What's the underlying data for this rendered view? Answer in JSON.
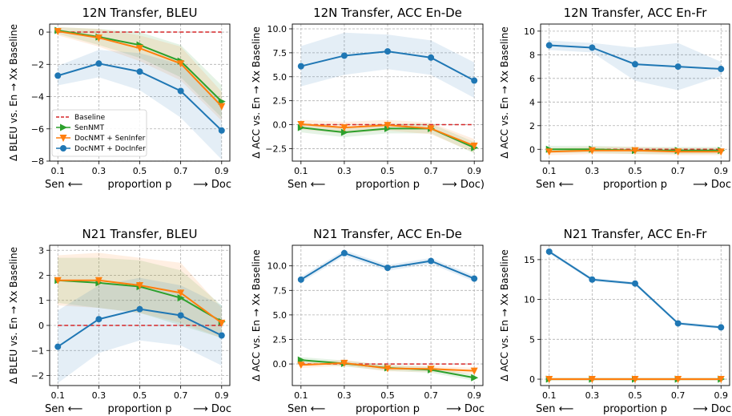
{
  "colors": {
    "baseline": "#d62728",
    "senNMT": "#2ca02c",
    "docSen": "#ff7f0e",
    "docDoc": "#1f77b4"
  },
  "legend": [
    "Baseline",
    "SenNMT",
    "DocNMT + SenInfer",
    "DocNMT + DocInfer"
  ],
  "chart_data": [
    {
      "type": "line",
      "title": "12N Transfer, BLEU",
      "ylabel": "Δ BLEU vs. En → Xx Baseline",
      "xlabel": [
        "Sen ⟵",
        "proportion p",
        "⟶ Doc"
      ],
      "x": [
        0.1,
        0.3,
        0.5,
        0.7,
        0.9
      ],
      "xticks": [
        "0.1",
        "0.3",
        "0.5",
        "0.7",
        "0.9"
      ],
      "ylim": [
        -8,
        0.5
      ],
      "yticks": [
        0,
        -2,
        -4,
        -6,
        -8
      ],
      "ytick_labels": [
        "0",
        "−2",
        "−4",
        "−6",
        "−8"
      ],
      "legend_shown": true,
      "series": [
        {
          "name": "SenNMT",
          "values": [
            0.1,
            -0.3,
            -0.8,
            -1.8,
            -4.3
          ],
          "lo": [
            -0.1,
            -0.8,
            -1.6,
            -2.8,
            -5.3
          ],
          "hi": [
            0.3,
            0.2,
            0.0,
            -0.8,
            -3.3
          ]
        },
        {
          "name": "DocNMT + SenInfer",
          "values": [
            0.05,
            -0.35,
            -1.0,
            -1.95,
            -4.6
          ],
          "lo": [
            -0.2,
            -0.9,
            -1.8,
            -3.0,
            -5.5
          ],
          "hi": [
            0.3,
            0.2,
            -0.2,
            -0.9,
            -3.7
          ]
        },
        {
          "name": "DocNMT + DocInfer",
          "values": [
            -2.7,
            -1.95,
            -2.45,
            -3.65,
            -6.1
          ],
          "lo": [
            -3.3,
            -2.8,
            -3.6,
            -5.3,
            -7.9
          ],
          "hi": [
            -2.1,
            -1.1,
            -1.3,
            -2.0,
            -4.3
          ]
        }
      ]
    },
    {
      "type": "line",
      "title": "12N Transfer, ACC En-De",
      "ylabel": "Δ ACC vs. En → Xx Baseline",
      "xlabel": [
        "Sen ⟵",
        "proportion p",
        "⟶ Doc)"
      ],
      "x": [
        0.1,
        0.3,
        0.5,
        0.7,
        0.9
      ],
      "xticks": [
        "0.1",
        "0.3",
        "0.5",
        "0.7",
        "0.9"
      ],
      "ylim": [
        -3.8,
        10.5
      ],
      "yticks": [
        10,
        7.5,
        5,
        2.5,
        0,
        -2.5
      ],
      "ytick_labels": [
        "10.0",
        "7.5",
        "5.0",
        "2.5",
        "0.0",
        "−2.5"
      ],
      "legend_shown": false,
      "series": [
        {
          "name": "SenNMT",
          "values": [
            -0.3,
            -0.8,
            -0.4,
            -0.4,
            -2.4
          ],
          "lo": [
            -0.8,
            -1.3,
            -0.9,
            -0.9,
            -3.0
          ],
          "hi": [
            0.2,
            -0.3,
            0.1,
            0.1,
            -1.8
          ]
        },
        {
          "name": "DocNMT + SenInfer",
          "values": [
            0.05,
            -0.3,
            -0.05,
            -0.4,
            -2.2
          ],
          "lo": [
            -0.5,
            -0.9,
            -0.6,
            -1.0,
            -2.9
          ],
          "hi": [
            0.5,
            0.3,
            0.5,
            0.2,
            -1.5
          ]
        },
        {
          "name": "DocNMT + DocInfer",
          "values": [
            6.1,
            7.2,
            7.65,
            7.0,
            4.6
          ],
          "lo": [
            4.0,
            5.2,
            5.8,
            5.2,
            2.8
          ],
          "hi": [
            8.2,
            9.6,
            9.4,
            8.8,
            6.5
          ]
        }
      ]
    },
    {
      "type": "line",
      "title": "12N Transfer, ACC En-Fr",
      "ylabel": "Δ ACC vs. En → Xx Baseline",
      "xlabel": [
        "Sen ⟵",
        "proportion p",
        "⟶ Doc"
      ],
      "x": [
        0.1,
        0.3,
        0.5,
        0.7,
        0.9
      ],
      "xticks": [
        "0.1",
        "0.3",
        "0.5",
        "0.7",
        "0.9"
      ],
      "ylim": [
        -1.0,
        10.6
      ],
      "yticks": [
        10,
        8,
        6,
        4,
        2,
        0
      ],
      "ytick_labels": [
        "10",
        "8",
        "6",
        "4",
        "2",
        "0"
      ],
      "legend_shown": false,
      "series": [
        {
          "name": "SenNMT",
          "values": [
            0.0,
            0.0,
            -0.1,
            -0.1,
            -0.1
          ],
          "lo": [
            -0.3,
            -0.3,
            -0.4,
            -0.4,
            -0.4
          ],
          "hi": [
            0.3,
            0.3,
            0.2,
            0.2,
            0.2
          ]
        },
        {
          "name": "DocNMT + SenInfer",
          "values": [
            -0.2,
            -0.1,
            -0.1,
            -0.2,
            -0.2
          ],
          "lo": [
            -0.5,
            -0.4,
            -0.4,
            -0.5,
            -0.5
          ],
          "hi": [
            0.1,
            0.2,
            0.2,
            0.1,
            0.1
          ]
        },
        {
          "name": "DocNMT + DocInfer",
          "values": [
            8.8,
            8.6,
            7.2,
            7.0,
            6.8
          ],
          "lo": [
            8.4,
            8.2,
            5.8,
            5.0,
            6.2
          ],
          "hi": [
            9.2,
            9.0,
            8.6,
            9.0,
            7.4
          ]
        }
      ]
    },
    {
      "type": "line",
      "title": "N21 Transfer, BLEU",
      "ylabel": "Δ BLEU vs. En → Xx Baseline",
      "xlabel": [
        "Sen ⟵",
        "proportion p",
        "⟶ Doc"
      ],
      "x": [
        0.1,
        0.3,
        0.5,
        0.7,
        0.9
      ],
      "xticks": [
        "0.1",
        "0.3",
        "0.5",
        "0.7",
        "0.9"
      ],
      "ylim": [
        -2.4,
        3.2
      ],
      "yticks": [
        3,
        2,
        1,
        0,
        -1,
        -2
      ],
      "ytick_labels": [
        "3",
        "2",
        "1",
        "0",
        "−1",
        "−2"
      ],
      "legend_shown": false,
      "series": [
        {
          "name": "SenNMT",
          "values": [
            1.8,
            1.7,
            1.55,
            1.1,
            0.15
          ],
          "lo": [
            0.9,
            0.7,
            0.5,
            0.0,
            -0.5
          ],
          "hi": [
            2.7,
            2.7,
            2.6,
            2.2,
            0.8
          ]
        },
        {
          "name": "DocNMT + SenInfer",
          "values": [
            1.8,
            1.8,
            1.6,
            1.3,
            0.1
          ],
          "lo": [
            0.8,
            0.7,
            0.5,
            0.1,
            -0.5
          ],
          "hi": [
            2.8,
            2.9,
            2.7,
            2.5,
            0.7
          ]
        },
        {
          "name": "DocNMT + DocInfer",
          "values": [
            -0.85,
            0.25,
            0.65,
            0.4,
            -0.4
          ],
          "lo": [
            -2.3,
            -1.1,
            -0.6,
            -0.8,
            -1.6
          ],
          "hi": [
            0.6,
            1.6,
            1.9,
            1.6,
            0.8
          ]
        }
      ]
    },
    {
      "type": "line",
      "title": "N21 Transfer, ACC En-De",
      "ylabel": "Δ ACC vs. En → Xx Baseline",
      "xlabel": [
        "Sen ⟵",
        "proportion p",
        "⟶ Doc"
      ],
      "x": [
        0.1,
        0.3,
        0.5,
        0.7,
        0.9
      ],
      "xticks": [
        "0.1",
        "0.3",
        "0.5",
        "0.7",
        "0.9"
      ],
      "ylim": [
        -2.2,
        12.1
      ],
      "yticks": [
        10,
        7.5,
        5,
        2.5,
        0
      ],
      "ytick_labels": [
        "10.0",
        "7.5",
        "5.0",
        "2.5",
        "0.0"
      ],
      "legend_shown": false,
      "series": [
        {
          "name": "SenNMT",
          "values": [
            0.4,
            0.05,
            -0.4,
            -0.6,
            -1.4
          ],
          "lo": [
            0.1,
            -0.25,
            -0.7,
            -0.9,
            -1.7
          ],
          "hi": [
            0.7,
            0.35,
            -0.1,
            -0.3,
            -1.1
          ]
        },
        {
          "name": "DocNMT + SenInfer",
          "values": [
            -0.1,
            0.1,
            -0.45,
            -0.5,
            -0.7
          ],
          "lo": [
            -0.4,
            -0.2,
            -0.75,
            -0.8,
            -1.0
          ],
          "hi": [
            0.2,
            0.4,
            -0.15,
            -0.2,
            -0.4
          ]
        },
        {
          "name": "DocNMT + DocInfer",
          "values": [
            8.6,
            11.3,
            9.8,
            10.5,
            8.7
          ],
          "lo": [
            8.3,
            11.0,
            9.5,
            10.2,
            8.4
          ],
          "hi": [
            8.9,
            11.6,
            10.1,
            10.8,
            9.0
          ]
        }
      ]
    },
    {
      "type": "line",
      "title": "N21 Transfer, ACC En-Fr",
      "ylabel": "Δ ACC vs. En → Xx Baseline",
      "xlabel": [
        "Sen ⟵",
        "proportion p",
        "⟶ Doc"
      ],
      "x": [
        0.1,
        0.3,
        0.5,
        0.7,
        0.9
      ],
      "xticks": [
        "0.1",
        "0.3",
        "0.5",
        "0.7",
        "0.9"
      ],
      "ylim": [
        -0.8,
        16.8
      ],
      "yticks": [
        15,
        10,
        5,
        0
      ],
      "ytick_labels": [
        "15",
        "10",
        "5",
        "0"
      ],
      "legend_shown": false,
      "series": [
        {
          "name": "SenNMT",
          "values": [
            0.0,
            0.0,
            0.0,
            0.0,
            0.0
          ],
          "lo": [
            -0.2,
            -0.2,
            -0.2,
            -0.2,
            -0.2
          ],
          "hi": [
            0.2,
            0.2,
            0.2,
            0.2,
            0.2
          ]
        },
        {
          "name": "DocNMT + SenInfer",
          "values": [
            0.0,
            0.0,
            0.0,
            0.0,
            0.0
          ],
          "lo": [
            -0.2,
            -0.2,
            -0.2,
            -0.2,
            -0.2
          ],
          "hi": [
            0.2,
            0.2,
            0.2,
            0.2,
            0.2
          ]
        },
        {
          "name": "DocNMT + DocInfer",
          "values": [
            16.0,
            12.5,
            12.0,
            7.0,
            6.5
          ],
          "lo": [
            15.8,
            12.3,
            11.8,
            6.8,
            6.3
          ],
          "hi": [
            16.2,
            12.7,
            12.2,
            7.2,
            6.7
          ]
        }
      ]
    }
  ]
}
